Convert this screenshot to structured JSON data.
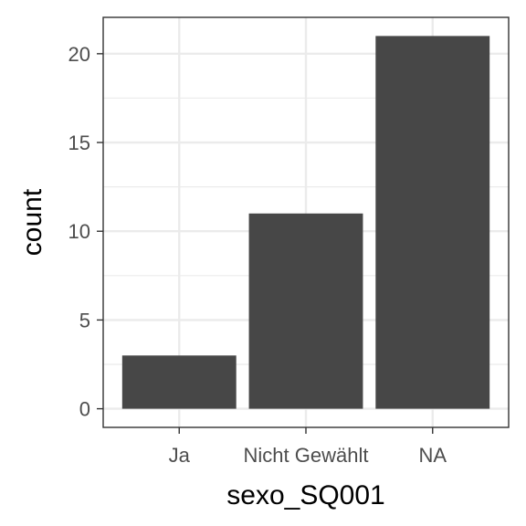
{
  "chart_data": {
    "type": "bar",
    "categories": [
      "Ja",
      "Nicht Gewählt",
      "NA"
    ],
    "values": [
      3,
      11,
      21
    ],
    "xlabel": "sexo_SQ001",
    "ylabel": "count",
    "ylim": [
      -1.05,
      22.05
    ],
    "yticks": [
      0,
      5,
      10,
      15,
      20
    ],
    "grid": true,
    "bar_color": "#474747",
    "panel_background": "#ffffff",
    "grid_color": "#ebebeb",
    "panel_border_color": "#333333"
  }
}
